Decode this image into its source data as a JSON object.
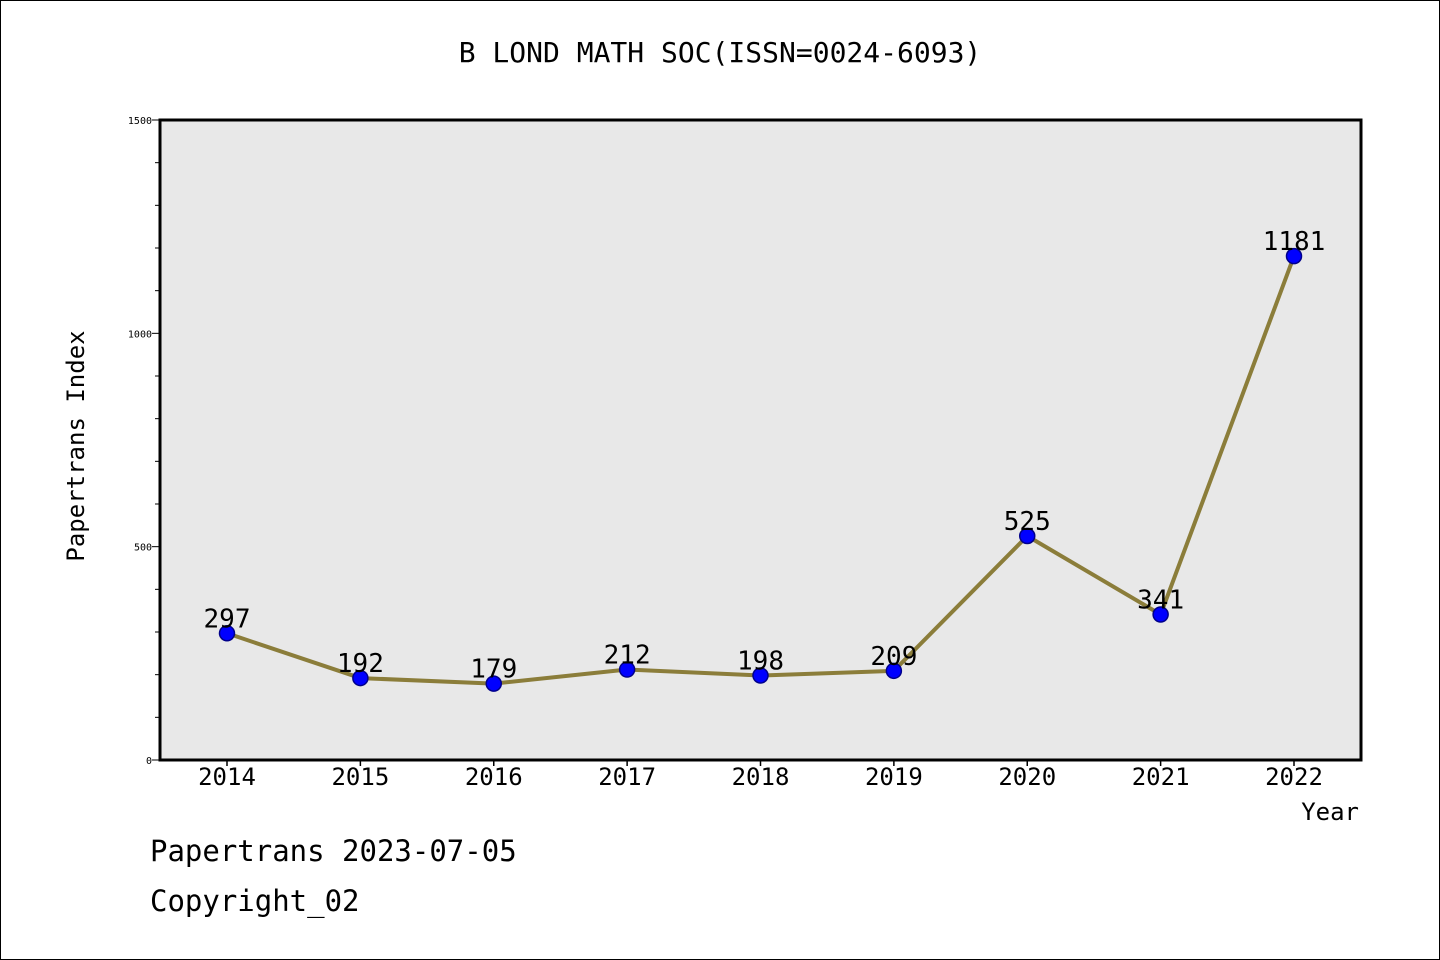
{
  "chart_data": {
    "type": "line",
    "title": "B LOND MATH SOC(ISSN=0024-6093)",
    "xlabel": "Year",
    "ylabel": "Papertrans Index",
    "categories": [
      "2014",
      "2015",
      "2016",
      "2017",
      "2018",
      "2019",
      "2020",
      "2021",
      "2022"
    ],
    "series": [
      {
        "values": [
          297,
          192,
          179,
          212,
          198,
          209,
          525,
          341,
          1181
        ]
      }
    ],
    "ylim": [
      0,
      1500
    ],
    "y_major_ticks": [
      0,
      500,
      1000,
      1500
    ],
    "y_minor_step": 100,
    "grid": false,
    "colors": {
      "line": "#8b7d3a",
      "marker_fill": "#0000ff",
      "marker_edge": "#00008b",
      "plot_background": "#e8e8e8",
      "axes_frame": "#000000"
    }
  },
  "footer": {
    "line1": "Papertrans 2023-07-05",
    "line2": "Copyright_02"
  }
}
